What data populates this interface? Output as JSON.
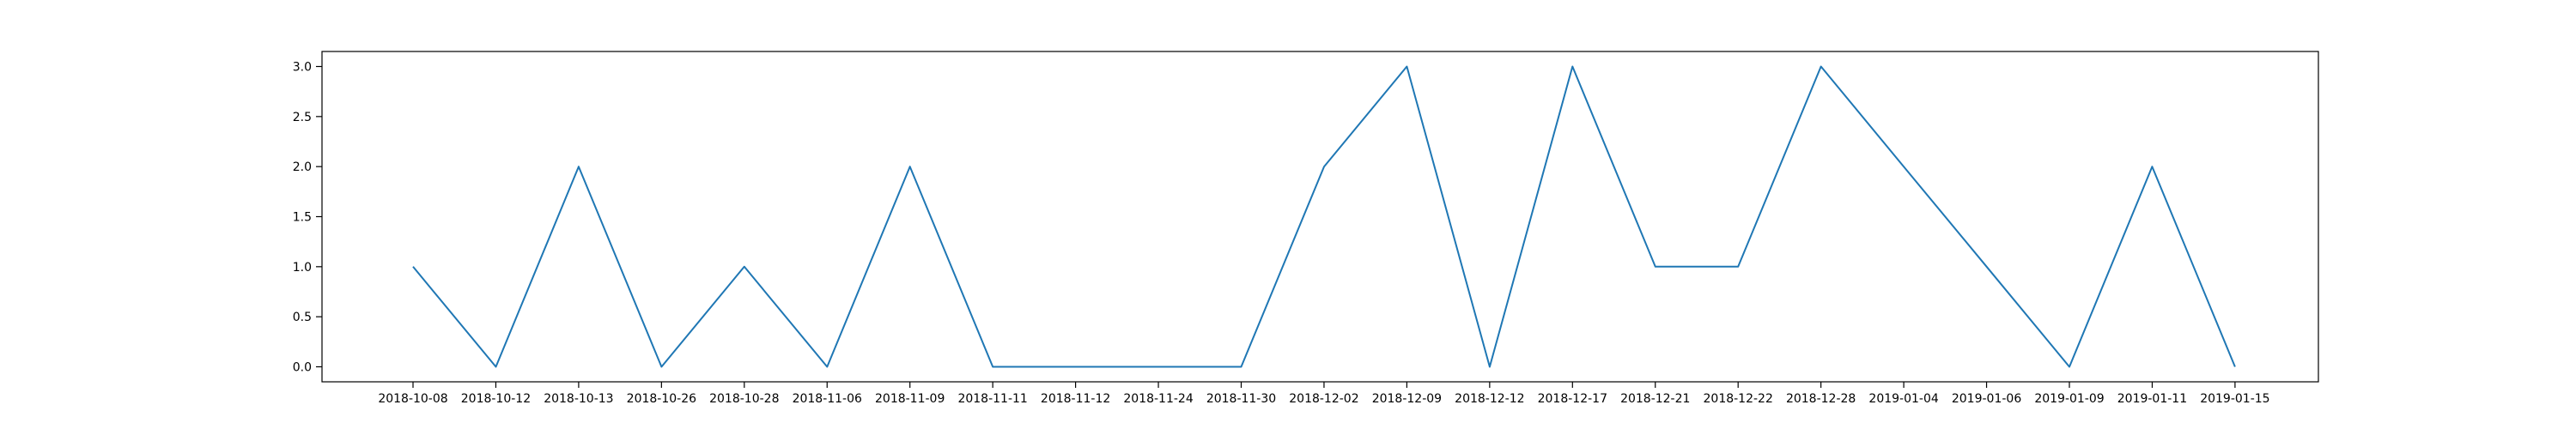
{
  "chart_data": {
    "type": "line",
    "title": "",
    "xlabel": "",
    "ylabel": "",
    "categories": [
      "2018-10-08",
      "2018-10-12",
      "2018-10-13",
      "2018-10-26",
      "2018-10-28",
      "2018-11-06",
      "2018-11-09",
      "2018-11-11",
      "2018-11-12",
      "2018-11-24",
      "2018-11-30",
      "2018-12-02",
      "2018-12-09",
      "2018-12-12",
      "2018-12-17",
      "2018-12-21",
      "2018-12-22",
      "2018-12-28",
      "2019-01-04",
      "2019-01-06",
      "2019-01-09",
      "2019-01-11",
      "2019-01-15"
    ],
    "series": [
      {
        "values": [
          1,
          0,
          2,
          0,
          1,
          0,
          2,
          0,
          0,
          0,
          0,
          2,
          3,
          0,
          3,
          1,
          1,
          3,
          2,
          1,
          0,
          2,
          0
        ],
        "color": "#1f77b4"
      }
    ],
    "ylim": [
      -0.15,
      3.15
    ],
    "yticks": [
      0.0,
      0.5,
      1.0,
      1.5,
      2.0,
      2.5,
      3.0
    ],
    "ytick_labels": [
      "0.0",
      "0.5",
      "1.0",
      "1.5",
      "2.0",
      "2.5",
      "3.0"
    ],
    "grid": false,
    "legend": "none"
  }
}
